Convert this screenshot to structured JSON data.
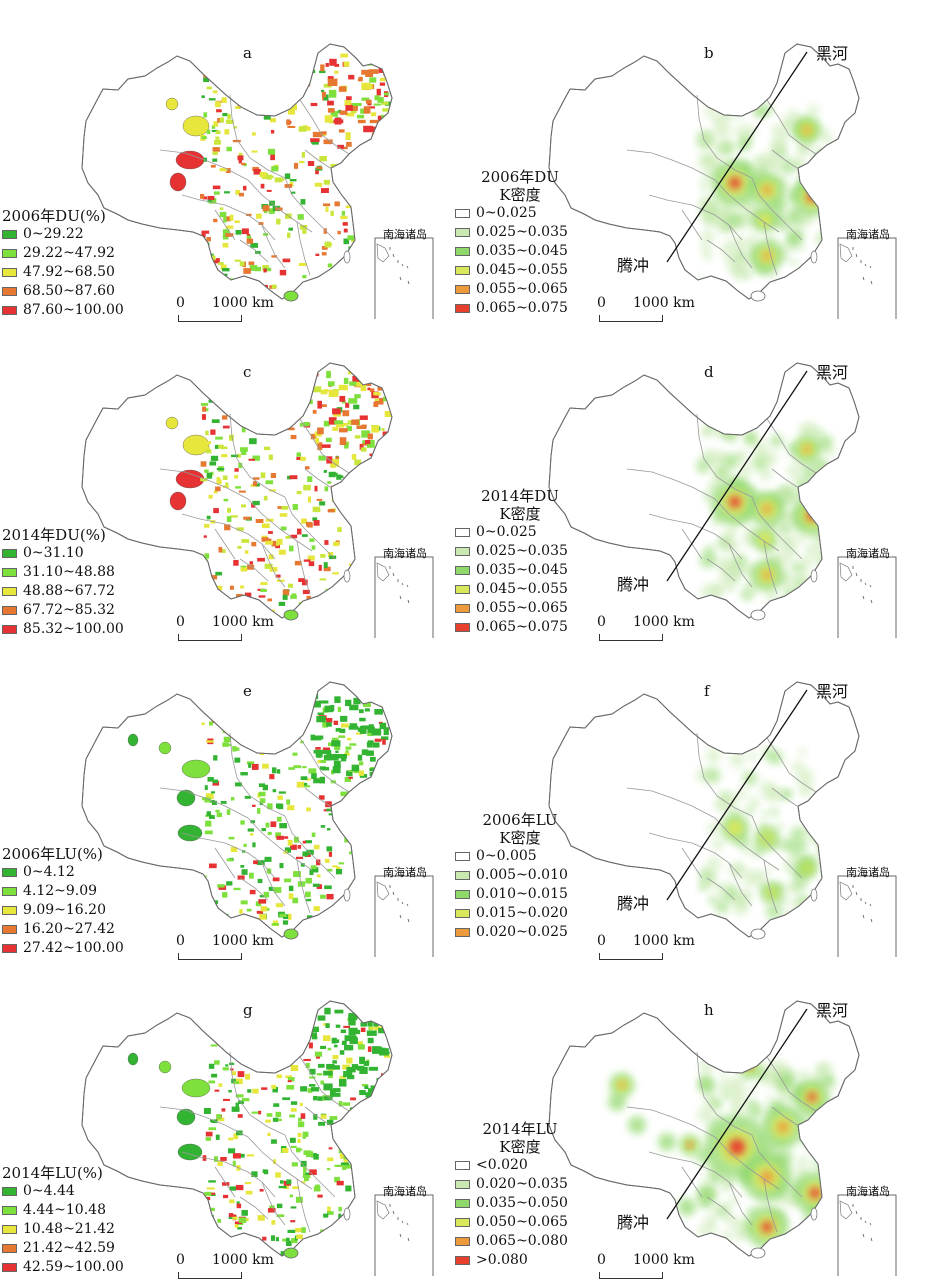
{
  "colors": {
    "border": "#9a9a9a",
    "outline": "#6a6a6a",
    "green_dark": "#32b432",
    "green_light": "#7ee03c",
    "yellow_green": "#c8e63c",
    "yellow": "#e6e63c",
    "orange": "#e67832",
    "red": "#e63232",
    "pale_green": "#c9e9b0",
    "mid_green": "#8fd86a",
    "kd_yellow": "#d9e85a",
    "kd_orange": "#ec9a3c",
    "kd_red": "#e8402e"
  },
  "labels": {
    "north_city": "黑河",
    "south_city": "腾冲",
    "inset": "南海诸岛",
    "scale_zero": "0",
    "scale_km": "1000 km"
  },
  "panels": [
    {
      "letter": "a",
      "kind": "du",
      "legend_title": "2006年DU(%)",
      "legend": [
        {
          "label": "0~29.22",
          "color": "#32b432"
        },
        {
          "label": "29.22~47.92",
          "color": "#7ee03c"
        },
        {
          "label": "47.92~68.50",
          "color": "#e6e63c"
        },
        {
          "label": "68.50~87.60",
          "color": "#e67832"
        },
        {
          "label": "87.60~100.00",
          "color": "#e63232"
        }
      ]
    },
    {
      "letter": "b",
      "kind": "kd",
      "legend_title": "2006年DU",
      "legend_title_2": "K密度",
      "legend": [
        {
          "label": "0~0.025",
          "color": "#ffffff"
        },
        {
          "label": "0.025~0.035",
          "color": "#c9e9b0"
        },
        {
          "label": "0.035~0.045",
          "color": "#8fd86a"
        },
        {
          "label": "0.045~0.055",
          "color": "#d9e85a"
        },
        {
          "label": "0.055~0.065",
          "color": "#ec9a3c"
        },
        {
          "label": "0.065~0.075",
          "color": "#e8402e"
        }
      ]
    },
    {
      "letter": "c",
      "kind": "du",
      "legend_title": "2014年DU(%)",
      "legend": [
        {
          "label": "0~31.10",
          "color": "#32b432"
        },
        {
          "label": "31.10~48.88",
          "color": "#7ee03c"
        },
        {
          "label": "48.88~67.72",
          "color": "#e6e63c"
        },
        {
          "label": "67.72~85.32",
          "color": "#e67832"
        },
        {
          "label": "85.32~100.00",
          "color": "#e63232"
        }
      ]
    },
    {
      "letter": "d",
      "kind": "kd",
      "legend_title": "2014年DU",
      "legend_title_2": "K密度",
      "legend": [
        {
          "label": "0~0.025",
          "color": "#ffffff"
        },
        {
          "label": "0.025~0.035",
          "color": "#c9e9b0"
        },
        {
          "label": "0.035~0.045",
          "color": "#8fd86a"
        },
        {
          "label": "0.045~0.055",
          "color": "#d9e85a"
        },
        {
          "label": "0.055~0.065",
          "color": "#ec9a3c"
        },
        {
          "label": "0.065~0.075",
          "color": "#e8402e"
        }
      ]
    },
    {
      "letter": "e",
      "kind": "lu",
      "legend_title": "2006年LU(%)",
      "legend": [
        {
          "label": "0~4.12",
          "color": "#32b432"
        },
        {
          "label": "4.12~9.09",
          "color": "#7ee03c"
        },
        {
          "label": "9.09~16.20",
          "color": "#e6e63c"
        },
        {
          "label": "16.20~27.42",
          "color": "#e67832"
        },
        {
          "label": "27.42~100.00",
          "color": "#e63232"
        }
      ]
    },
    {
      "letter": "f",
      "kind": "kd",
      "legend_title": "2006年LU",
      "legend_title_2": "K密度",
      "legend": [
        {
          "label": "0~0.005",
          "color": "#ffffff"
        },
        {
          "label": "0.005~0.010",
          "color": "#c9e9b0"
        },
        {
          "label": "0.010~0.015",
          "color": "#8fd86a"
        },
        {
          "label": "0.015~0.020",
          "color": "#d9e85a"
        },
        {
          "label": "0.020~0.025",
          "color": "#ec9a3c"
        }
      ]
    },
    {
      "letter": "g",
      "kind": "lu",
      "legend_title": "2014年LU(%)",
      "legend": [
        {
          "label": "0~4.44",
          "color": "#32b432"
        },
        {
          "label": "4.44~10.48",
          "color": "#7ee03c"
        },
        {
          "label": "10.48~21.42",
          "color": "#e6e63c"
        },
        {
          "label": "21.42~42.59",
          "color": "#e67832"
        },
        {
          "label": "42.59~100.00",
          "color": "#e63232"
        }
      ]
    },
    {
      "letter": "h",
      "kind": "kd",
      "legend_title": "2014年LU",
      "legend_title_2": "K密度",
      "legend": [
        {
          "label": "<0.020",
          "color": "#ffffff"
        },
        {
          "label": "0.020~0.035",
          "color": "#c9e9b0"
        },
        {
          "label": "0.035~0.050",
          "color": "#8fd86a"
        },
        {
          "label": "0.050~0.065",
          "color": "#d9e85a"
        },
        {
          "label": "0.065~0.080",
          "color": "#ec9a3c"
        },
        {
          "label": ">0.080",
          "color": "#e8402e"
        }
      ]
    }
  ]
}
